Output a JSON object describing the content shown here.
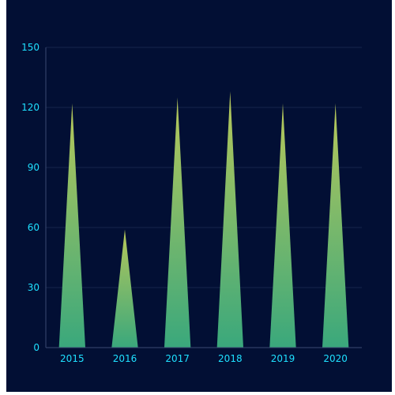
{
  "chart_data": {
    "type": "bar",
    "bar_shape": "triangle",
    "categories": [
      "2015",
      "2016",
      "2017",
      "2018",
      "2019",
      "2020"
    ],
    "values": [
      122,
      59,
      125,
      128,
      122,
      122
    ],
    "ylim": [
      0,
      150
    ],
    "yticks": [
      0,
      30,
      60,
      90,
      120,
      150
    ],
    "grid": true,
    "title": "",
    "xlabel": "",
    "ylabel": "",
    "colors": {
      "background": "#020f34",
      "tick_label": "#1ee0ff",
      "grid": "#16244d",
      "axis": "#3a4a72",
      "bar_top": "#b8c85a",
      "bar_bottom": "#3aa87c"
    }
  }
}
